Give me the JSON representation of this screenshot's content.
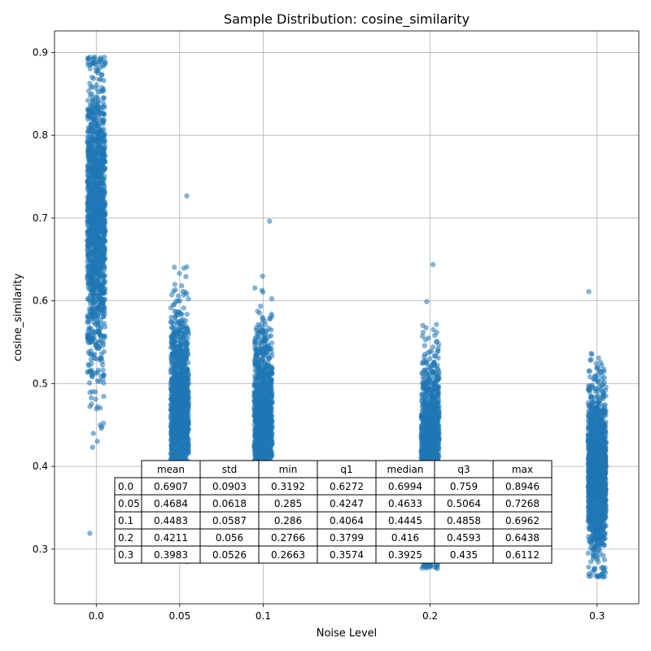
{
  "chart_data": {
    "type": "scatter",
    "title": "Sample Distribution: cosine_similarity",
    "xlabel": "Noise Level",
    "ylabel": "cosine_similarity",
    "categories": [
      "0.0",
      "0.05",
      "0.1",
      "0.2",
      "0.3"
    ],
    "y_ticks": [
      "0.3",
      "0.4",
      "0.5",
      "0.6",
      "0.7",
      "0.8",
      "0.9"
    ],
    "ylim": [
      0.234,
      0.926
    ],
    "grid": true,
    "point_color": "#1f77b4",
    "groups": [
      {
        "noise": "0.0",
        "mean": 0.6907,
        "std": 0.0903,
        "min": 0.3192,
        "q1": 0.6272,
        "median": 0.6994,
        "q3": 0.759,
        "max": 0.8946
      },
      {
        "noise": "0.05",
        "mean": 0.4684,
        "std": 0.0618,
        "min": 0.285,
        "q1": 0.4247,
        "median": 0.4633,
        "q3": 0.5064,
        "max": 0.7268
      },
      {
        "noise": "0.1",
        "mean": 0.4483,
        "std": 0.0587,
        "min": 0.286,
        "q1": 0.4064,
        "median": 0.4445,
        "q3": 0.4858,
        "max": 0.6962
      },
      {
        "noise": "0.2",
        "mean": 0.4211,
        "std": 0.056,
        "min": 0.2766,
        "q1": 0.3799,
        "median": 0.416,
        "q3": 0.4593,
        "max": 0.6438
      },
      {
        "noise": "0.3",
        "mean": 0.3983,
        "std": 0.0526,
        "min": 0.2663,
        "q1": 0.3574,
        "median": 0.3925,
        "q3": 0.435,
        "max": 0.6112
      }
    ],
    "table": {
      "columns": [
        "mean",
        "std",
        "min",
        "q1",
        "median",
        "q3",
        "max"
      ],
      "rows": [
        {
          "label": "0.0",
          "cells": [
            "0.6907",
            "0.0903",
            "0.3192",
            "0.6272",
            "0.6994",
            "0.759",
            "0.8946"
          ]
        },
        {
          "label": "0.05",
          "cells": [
            "0.4684",
            "0.0618",
            "0.285",
            "0.4247",
            "0.4633",
            "0.5064",
            "0.7268"
          ]
        },
        {
          "label": "0.1",
          "cells": [
            "0.4483",
            "0.0587",
            "0.286",
            "0.4064",
            "0.4445",
            "0.4858",
            "0.6962"
          ]
        },
        {
          "label": "0.2",
          "cells": [
            "0.4211",
            "0.056",
            "0.2766",
            "0.3799",
            "0.416",
            "0.4593",
            "0.6438"
          ]
        },
        {
          "label": "0.3",
          "cells": [
            "0.3983",
            "0.0526",
            "0.2663",
            "0.3574",
            "0.3925",
            "0.435",
            "0.6112"
          ]
        }
      ]
    }
  }
}
